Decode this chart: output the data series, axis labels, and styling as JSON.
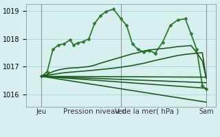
{
  "xlabel": "Pression niveau de la mer( hPa )",
  "bg_color": "#d8eff0",
  "grid_color": "#aadddd",
  "marker": "D",
  "markersize": 2.5,
  "ylim": [
    1015.55,
    1019.25
  ],
  "yticks": [
    1016,
    1017,
    1018,
    1019
  ],
  "day_labels": [
    "Jeu",
    "Ven",
    "Sam"
  ],
  "day_positions": [
    0.08,
    0.5,
    0.95
  ],
  "series": [
    {
      "x": [
        0.08,
        0.11,
        0.14,
        0.17,
        0.2,
        0.23,
        0.25,
        0.27,
        0.3,
        0.33,
        0.36,
        0.39,
        0.42,
        0.46,
        0.5,
        0.53,
        0.56,
        0.59,
        0.62,
        0.65,
        0.68
      ],
      "y": [
        1016.65,
        1016.82,
        1017.62,
        1017.78,
        1017.82,
        1017.96,
        1017.78,
        1017.85,
        1017.9,
        1018.0,
        1018.55,
        1018.82,
        1018.98,
        1019.07,
        1018.72,
        1018.48,
        1017.82,
        1017.62,
        1017.52,
        1017.58,
        1017.48
      ],
      "linewidth": 1.3,
      "color": "#2d7a2d",
      "markers": true
    },
    {
      "x": [
        0.68,
        0.72,
        0.76,
        0.8,
        0.84,
        0.87,
        0.9,
        0.93,
        0.95
      ],
      "y": [
        1017.48,
        1017.88,
        1018.48,
        1018.68,
        1018.72,
        1018.18,
        1017.62,
        1016.32,
        1016.18
      ],
      "linewidth": 1.3,
      "color": "#2d7a2d",
      "markers": true
    },
    {
      "x": [
        0.08,
        0.95
      ],
      "y": [
        1016.65,
        1016.62
      ],
      "linewidth": 1.2,
      "color": "#1a5c1a",
      "markers": false
    },
    {
      "x": [
        0.08,
        0.95
      ],
      "y": [
        1016.65,
        1016.42
      ],
      "linewidth": 1.2,
      "color": "#1a5c1a",
      "markers": false
    },
    {
      "x": [
        0.08,
        0.95
      ],
      "y": [
        1016.65,
        1016.22
      ],
      "linewidth": 1.2,
      "color": "#1a5c1a",
      "markers": false
    },
    {
      "x": [
        0.08,
        0.95
      ],
      "y": [
        1016.65,
        1015.72
      ],
      "linewidth": 1.2,
      "color": "#1a5c1a",
      "markers": false
    },
    {
      "x": [
        0.08,
        0.14,
        0.2,
        0.27,
        0.34,
        0.4,
        0.46,
        0.5,
        0.56,
        0.62,
        0.68,
        0.72,
        0.76,
        0.8,
        0.84,
        0.87,
        0.9,
        0.93,
        0.95
      ],
      "y": [
        1016.65,
        1016.72,
        1016.78,
        1016.82,
        1016.86,
        1016.9,
        1016.94,
        1016.98,
        1017.04,
        1017.12,
        1017.22,
        1017.28,
        1017.34,
        1017.4,
        1017.44,
        1017.46,
        1017.48,
        1017.5,
        1016.58
      ],
      "linewidth": 1.2,
      "color": "#1a5c1a",
      "markers": false
    },
    {
      "x": [
        0.08,
        0.11,
        0.14,
        0.17,
        0.2,
        0.22,
        0.24,
        0.27,
        0.3,
        0.33,
        0.36,
        0.39,
        0.42,
        0.46,
        0.5,
        0.53,
        0.56,
        0.59,
        0.62,
        0.65,
        0.68,
        0.72,
        0.76,
        0.8,
        0.84,
        0.87,
        0.9,
        0.93,
        0.95
      ],
      "y": [
        1016.65,
        1016.72,
        1016.82,
        1016.88,
        1016.92,
        1016.94,
        1016.95,
        1016.96,
        1016.98,
        1017.0,
        1017.05,
        1017.12,
        1017.18,
        1017.26,
        1017.34,
        1017.4,
        1017.46,
        1017.5,
        1017.56,
        1017.6,
        1017.62,
        1017.65,
        1017.68,
        1017.72,
        1017.74,
        1017.76,
        1017.5,
        1017.2,
        1016.6
      ],
      "linewidth": 1.2,
      "color": "#1a5c1a",
      "markers": false
    }
  ]
}
